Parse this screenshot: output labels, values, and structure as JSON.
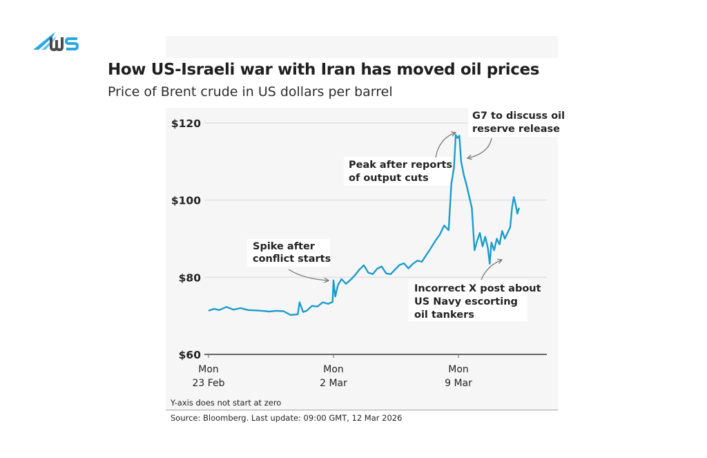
{
  "brand": {
    "logo_text": "WS",
    "accent": "#29a8e0",
    "dark": "#4a4a4a"
  },
  "chart_data": {
    "type": "line",
    "title": "How US-Israeli war with Iran has moved oil prices",
    "subtitle": "Price of Brent crude in US dollars per barrel",
    "xlabel": "",
    "ylabel": "",
    "ylim": [
      60,
      120
    ],
    "yticks": [
      60,
      80,
      100,
      120
    ],
    "ytick_labels": [
      "$60",
      "$80",
      "$100",
      "$120"
    ],
    "x_unit": "days since Mon 23 Feb 2026",
    "xlim": [
      0,
      17.4
    ],
    "xticks": [
      0,
      7,
      14
    ],
    "xtick_labels": [
      [
        "Mon",
        "23 Feb"
      ],
      [
        "Mon",
        "2 Mar"
      ],
      [
        "Mon",
        "9 Mar"
      ]
    ],
    "grid": "horizontal",
    "line_color": "#1a9ccc",
    "series": [
      {
        "name": "Brent crude",
        "x": [
          0,
          0.3,
          0.6,
          1.0,
          1.4,
          1.8,
          2.2,
          2.6,
          3.0,
          3.4,
          3.8,
          4.2,
          4.6,
          5.0,
          5.1,
          5.3,
          5.5,
          5.8,
          6.1,
          6.4,
          6.7,
          6.95,
          7.0,
          7.1,
          7.25,
          7.45,
          7.7,
          7.95,
          8.2,
          8.45,
          8.7,
          8.95,
          9.2,
          9.45,
          9.7,
          9.95,
          10.2,
          10.45,
          10.7,
          10.95,
          11.2,
          11.45,
          11.7,
          11.95,
          12.2,
          12.45,
          12.7,
          12.95,
          13.2,
          13.45,
          13.6,
          13.75,
          13.85,
          13.95,
          14.05,
          14.15,
          14.3,
          14.45,
          14.6,
          14.75,
          14.9,
          15.05,
          15.2,
          15.35,
          15.5,
          15.65,
          15.75,
          15.85,
          16.0,
          16.15,
          16.3,
          16.45,
          16.6,
          16.75,
          16.9,
          17.0,
          17.1,
          17.2,
          17.3,
          17.4
        ],
        "values": [
          71.3,
          71.8,
          71.5,
          72.3,
          71.6,
          72.0,
          71.5,
          71.4,
          71.3,
          71.1,
          71.3,
          71.2,
          70.2,
          70.4,
          73.5,
          71.0,
          71.3,
          72.6,
          72.4,
          73.5,
          73.1,
          73.6,
          79.2,
          75.0,
          78.0,
          79.5,
          78.3,
          79.3,
          80.5,
          82.0,
          83.1,
          81.2,
          80.8,
          82.2,
          82.8,
          81.0,
          80.8,
          82.0,
          83.2,
          83.6,
          82.3,
          83.5,
          84.3,
          84.0,
          85.8,
          87.5,
          89.4,
          91.0,
          93.4,
          92.2,
          104.2,
          108.4,
          116.9,
          116.1,
          116.7,
          110.0,
          106.5,
          104.0,
          101.0,
          98.0,
          87.0,
          89.5,
          91.5,
          88.0,
          90.5,
          87.5,
          83.5,
          89.0,
          87.0,
          90.0,
          88.5,
          92.0,
          90.0,
          91.5,
          93.0,
          98.0,
          100.8,
          99.0,
          96.5,
          98.0
        ]
      }
    ],
    "annotations": [
      {
        "id": "spike",
        "lines": [
          "Spike after",
          "conflict starts"
        ],
        "x": 6.95,
        "y": 79.2
      },
      {
        "id": "peak",
        "lines": [
          "Peak after reports",
          "of output cuts"
        ],
        "x": 13.85,
        "y": 116.9
      },
      {
        "id": "g7",
        "lines": [
          "G7 to discuss oil",
          "reserve release"
        ],
        "x": 14.1,
        "y": 110.5
      },
      {
        "id": "xpost",
        "lines": [
          "Incorrect X post about",
          "US Navy escorting",
          "oil tankers"
        ],
        "x": 15.75,
        "y": 83.8
      }
    ]
  },
  "footer": {
    "note": "Y-axis does not start at zero",
    "source": "Source: Bloomberg. Last update: 09:00 GMT, 12 Mar 2026"
  }
}
